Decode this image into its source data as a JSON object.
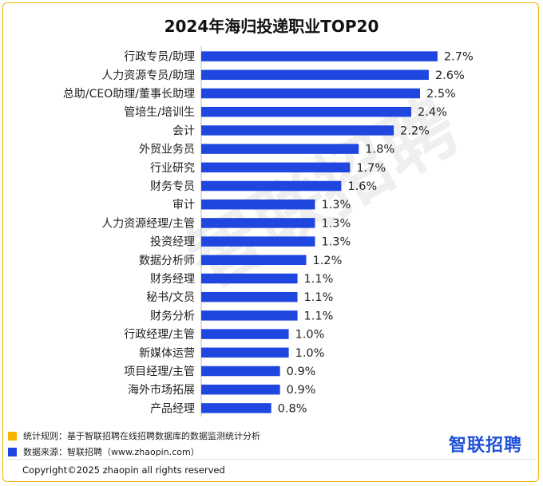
{
  "chart_data": {
    "type": "bar",
    "orientation": "horizontal",
    "title": "2024年海归投递职业TOP20",
    "categories": [
      "行政专员/助理",
      "人力资源专员/助理",
      "总助/CEO助理/董事长助理",
      "管培生/培训生",
      "会计",
      "外贸业务员",
      "行业研究",
      "财务专员",
      "审计",
      "人力资源经理/主管",
      "投资经理",
      "数据分析师",
      "财务经理",
      "秘书/文员",
      "财务分析",
      "行政经理/主管",
      "新媒体运营",
      "项目经理/主管",
      "海外市场拓展",
      "产品经理"
    ],
    "values": [
      2.7,
      2.6,
      2.5,
      2.4,
      2.2,
      1.8,
      1.7,
      1.6,
      1.3,
      1.3,
      1.3,
      1.2,
      1.1,
      1.1,
      1.1,
      1.0,
      1.0,
      0.9,
      0.9,
      0.8
    ],
    "labels": [
      "2.7%",
      "2.6%",
      "2.5%",
      "2.4%",
      "2.2%",
      "1.8%",
      "1.7%",
      "1.6%",
      "1.3%",
      "1.3%",
      "1.3%",
      "1.2%",
      "1.1%",
      "1.1%",
      "1.1%",
      "1.0%",
      "1.0%",
      "0.9%",
      "0.9%",
      "0.8%"
    ],
    "value_unit": "%",
    "bar_color": "#1f47e0",
    "watermark": "智联招聘"
  },
  "notes": [
    {
      "text": "统计规则：基于智联招聘在线招聘数据库的数据监测统计分析",
      "color": "#f5b400"
    },
    {
      "text": "数据来源：智联招聘（www.zhaopin.com）",
      "color": "#1f47e0"
    }
  ],
  "brand": "智联招聘",
  "copyright": "Copyright©2025 zhaopin all rights reserved",
  "frame_color": "#f0b400"
}
